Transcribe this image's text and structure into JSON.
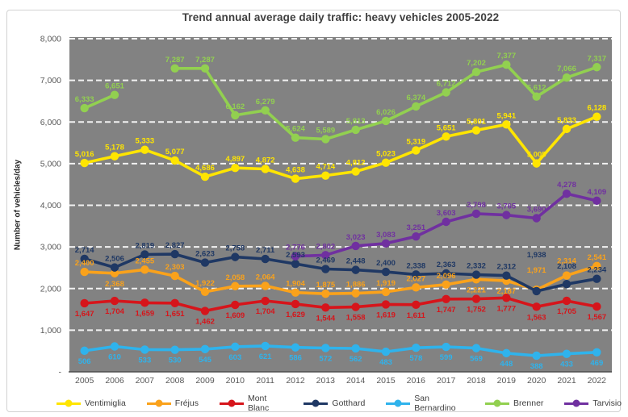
{
  "chart_data": {
    "type": "line",
    "title": "Trend annual average daily traffic: heavy vehicles 2005-2022",
    "ylabel": "Number of vehicles/day",
    "categories": [
      "2005",
      "2006",
      "2007",
      "2008",
      "2009",
      "2010",
      "2011",
      "2012",
      "2013",
      "2014",
      "2015",
      "2016",
      "2017",
      "2018",
      "2019",
      "2020",
      "2021",
      "2022"
    ],
    "y_axis": {
      "min": 0,
      "max": 8000,
      "step": 1000,
      "tick_labels": [
        "-",
        "1,000",
        "2,000",
        "3,000",
        "4,000",
        "5,000",
        "6,000",
        "7,000",
        "8,000"
      ]
    },
    "plot_bg": "#828282",
    "gridline_color": "#f2f2f2",
    "axis_line_color": "#4d4d4d",
    "axis_text_color": "#595959",
    "grid": "horizontal-dashed",
    "legend_position": "bottom",
    "series": [
      {
        "name": "Ventimiglia",
        "color": "#FFE500",
        "label_position": "above",
        "values": [
          5016,
          5178,
          5333,
          5077,
          4686,
          4897,
          4872,
          4638,
          4714,
          4812,
          5023,
          5319,
          5651,
          5801,
          5941,
          5005,
          5833,
          6128
        ]
      },
      {
        "name": "Fréjus",
        "color": "#FAA21B",
        "label_position": "above",
        "below_indices": [
          1,
          13,
          14
        ],
        "label_dy_overrides": {
          "15": -21,
          "16": -15
        },
        "values": [
          2400,
          2368,
          2455,
          2303,
          1922,
          2058,
          2064,
          1904,
          1875,
          1886,
          1919,
          2027,
          2096,
          2221,
          2187,
          1971,
          2314,
          2541
        ]
      },
      {
        "name": "Mont Blanc",
        "color": "#D6151B",
        "label_position": "below",
        "values": [
          1647,
          1704,
          1659,
          1651,
          1462,
          1609,
          1704,
          1629,
          1544,
          1558,
          1619,
          1611,
          1747,
          1752,
          1777,
          1563,
          1705,
          1567
        ]
      },
      {
        "name": "Gotthard",
        "color": "#1F3864",
        "label_position": "above",
        "label_dy_overrides": {
          "15": -42,
          "16": -19
        },
        "values": [
          2714,
          2506,
          2819,
          2827,
          2623,
          2758,
          2711,
          2593,
          2469,
          2448,
          2400,
          2338,
          2363,
          2332,
          2312,
          1938,
          2108,
          2234
        ]
      },
      {
        "name": "San Bernardino",
        "color": "#2FB3EC",
        "label_position": "below",
        "values": [
          506,
          610,
          533,
          530,
          545,
          603,
          621,
          586,
          572,
          562,
          483,
          578,
          599,
          569,
          448,
          388,
          433,
          469
        ]
      },
      {
        "name": "Brenner",
        "color": "#92D050",
        "label_position": "above",
        "values": [
          6333,
          6651,
          null,
          7287,
          7287,
          6162,
          6279,
          5624,
          5589,
          5813,
          6026,
          6374,
          6712,
          7202,
          7377,
          6612,
          7066,
          7317
        ]
      },
      {
        "name": "Tarvisio",
        "color": "#7030A0",
        "label_position": "above",
        "values": [
          null,
          null,
          null,
          null,
          null,
          null,
          null,
          2776,
          2802,
          3023,
          3083,
          3251,
          3603,
          3798,
          3765,
          3690,
          4278,
          4109
        ]
      }
    ]
  }
}
